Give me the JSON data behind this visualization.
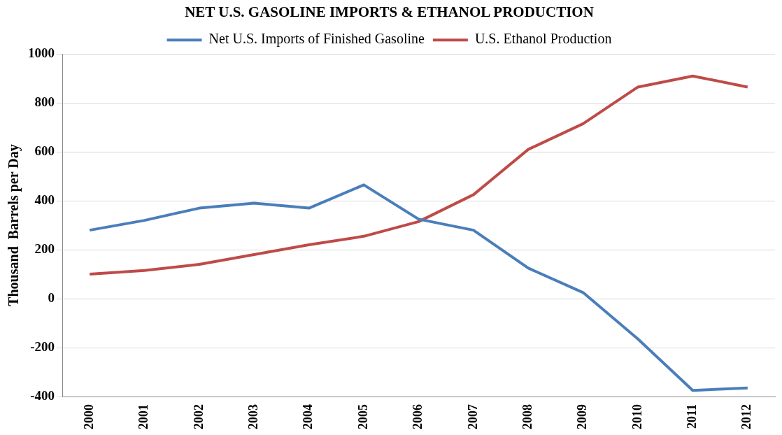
{
  "chart_data": {
    "type": "line",
    "title": "NET U.S. GASOLINE IMPORTS & ETHANOL PRODUCTION",
    "ylabel": "Thousand  Barrels per Day",
    "categories": [
      "2000",
      "2001",
      "2002",
      "2003",
      "2004",
      "2005",
      "2006",
      "2007",
      "2008",
      "2009",
      "2010",
      "2011",
      "2012"
    ],
    "series": [
      {
        "name": "Net U.S. Imports of Finished Gasoline",
        "color": "#4a7ebb",
        "values": [
          280,
          320,
          370,
          390,
          370,
          465,
          325,
          280,
          125,
          25,
          -165,
          -375,
          -365
        ]
      },
      {
        "name": "U.S. Ethanol Production",
        "color": "#be4b48",
        "values": [
          100,
          115,
          140,
          180,
          220,
          255,
          315,
          425,
          610,
          715,
          865,
          910,
          865
        ]
      }
    ],
    "ylim": [
      -400,
      1000
    ],
    "yticks": [
      -400,
      -200,
      0,
      200,
      400,
      600,
      800,
      1000
    ],
    "grid": "y",
    "legend": "top",
    "marker": "none",
    "line_style": "solid"
  }
}
